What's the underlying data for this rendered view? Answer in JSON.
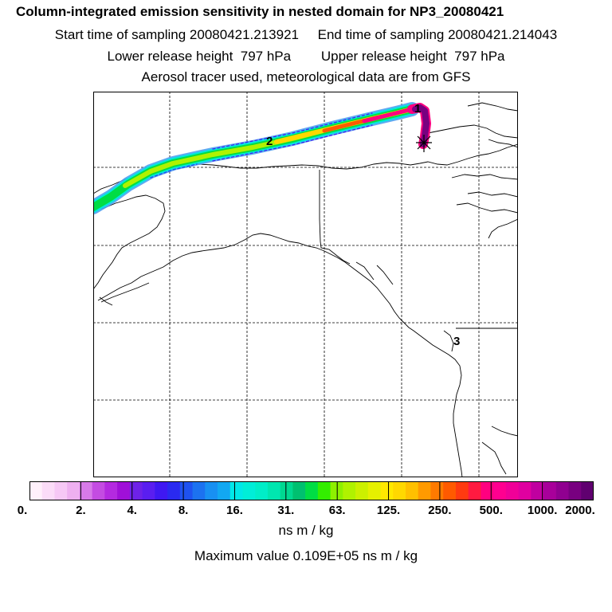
{
  "header": {
    "title": "Column-integrated emission sensitivity in nested domain for NP3_20080421",
    "line2": "Start time of sampling 20080421.213921     End time of sampling 20080421.214043",
    "line3": "Lower release height  797 hPa        Upper release height  797 hPa",
    "line4": "Aerosol tracer used, meteorological data are from GFS"
  },
  "map": {
    "markers": [
      "1",
      "2",
      "3"
    ],
    "release_point_icon": "star-icon"
  },
  "colorbar": {
    "tick_labels": [
      "0.",
      "2.",
      "4.",
      "8.",
      "16.",
      "31.",
      "63.",
      "125.",
      "250.",
      "500.",
      "1000.",
      "2000."
    ],
    "units": "ns m / kg",
    "colors": [
      "#fff0fb",
      "#fbdcf8",
      "#f6c8f5",
      "#eeb0f0",
      "#d77ae8",
      "#c44ce2",
      "#b42ae0",
      "#a010d8",
      "#6e22e8",
      "#5a1ef0",
      "#3f18f2",
      "#2a2af0",
      "#1f52f0",
      "#1c72f0",
      "#1890f2",
      "#12a8f2",
      "#00e8e8",
      "#00eed8",
      "#00eec8",
      "#00e6b0",
      "#00d890",
      "#00c070",
      "#00dd44",
      "#33ee00",
      "#8ef000",
      "#b0f200",
      "#ccf000",
      "#e6f000",
      "#ffe800",
      "#ffd800",
      "#ffc000",
      "#ff9a00",
      "#ff7a00",
      "#ff5a00",
      "#ff3a10",
      "#ff1a40",
      "#ff0080",
      "#ff0090",
      "#f00098",
      "#e000a0",
      "#c000a0",
      "#a8009a",
      "#900090",
      "#780080",
      "#600070"
    ]
  },
  "footer": {
    "max_value": "Maximum value  0.109E+05 ns m / kg"
  }
}
